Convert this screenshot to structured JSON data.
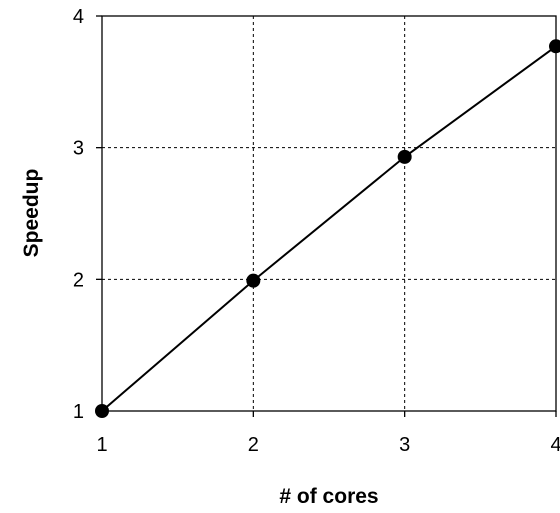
{
  "chart_data": {
    "type": "line",
    "title": "",
    "xlabel": "# of cores",
    "ylabel": "Speedup",
    "xlim": [
      1,
      4
    ],
    "ylim": [
      1,
      4
    ],
    "x_ticks": [
      "1",
      "2",
      "3",
      "4"
    ],
    "y_ticks": [
      "1",
      "2",
      "3",
      "4"
    ],
    "grid": true,
    "grid_style": "dashed",
    "series": [
      {
        "x": [
          1,
          2,
          3,
          4
        ],
        "values": [
          1.0,
          1.99,
          2.93,
          3.77
        ],
        "color": "#000000",
        "marker": "circle"
      }
    ]
  }
}
